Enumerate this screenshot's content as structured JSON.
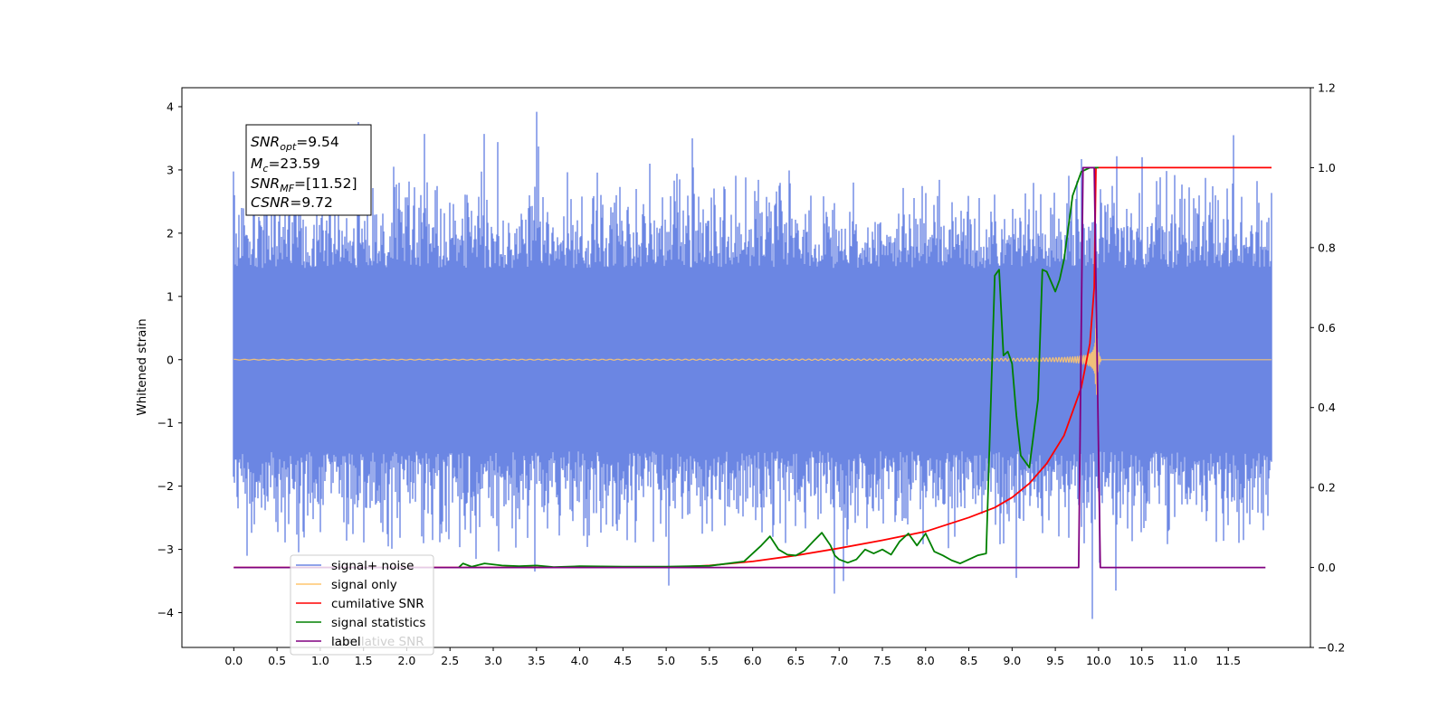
{
  "chart_data": {
    "type": "line",
    "ylabel_left": "Whitened strain",
    "xlim": [
      -0.6,
      12.45
    ],
    "ylim_left": [
      -4.55,
      4.3
    ],
    "ylim_right": [
      -0.2,
      1.2
    ],
    "xticks": [
      "0.0",
      "0.5",
      "1.0",
      "1.5",
      "2.0",
      "2.5",
      "3.0",
      "3.5",
      "4.0",
      "4.5",
      "5.0",
      "5.5",
      "6.0",
      "6.5",
      "7.0",
      "7.5",
      "8.0",
      "8.5",
      "9.0",
      "9.5",
      "10.0",
      "10.5",
      "11.0",
      "11.5"
    ],
    "yticks_left": [
      "−4",
      "−3",
      "−2",
      "−1",
      "0",
      "1",
      "2",
      "3",
      "4"
    ],
    "yticks_right": [
      "−0.2",
      "0.0",
      "0.2",
      "0.4",
      "0.6",
      "0.8",
      "1.0",
      "1.2"
    ],
    "annotation": {
      "lines": [
        {
          "var": "SNR",
          "sub": "opt",
          "value": "=9.54"
        },
        {
          "var": "M",
          "sub": "c",
          "value": "=23.59"
        },
        {
          "var": "SNR",
          "sub": "MF",
          "value": "=[11.52]"
        },
        {
          "var": "CSNR",
          "sub": "",
          "value": "=9.72"
        }
      ]
    },
    "legend": {
      "placement": "lower-left",
      "entries": [
        {
          "label": "signal+ noise",
          "color": "#6b86e3"
        },
        {
          "label": "signal only",
          "color": "#ffc66e"
        },
        {
          "label": "cumilative SNR",
          "color": "#ff0000"
        },
        {
          "label": "signal statistics",
          "color": "#008000"
        },
        {
          "label": "label",
          "color": "#800080"
        }
      ],
      "overlapped_text": "cumilative SNR"
    },
    "series": [
      {
        "name": "signal+ noise",
        "axis": "left",
        "color": "#6b86e3",
        "style": "dense_noise",
        "x_range": [
          0.0,
          12.0
        ],
        "spikes": [
          [
            3.5,
            3.92
          ],
          [
            2.2,
            3.57
          ],
          [
            2.9,
            3.57
          ],
          [
            1.85,
            3.05
          ],
          [
            5.3,
            3.5
          ],
          [
            10.5,
            3.2
          ],
          [
            9.8,
            3.17
          ],
          [
            6.95,
            -3.7
          ],
          [
            9.05,
            -3.45
          ],
          [
            9.93,
            -4.1
          ],
          [
            3.48,
            -3.35
          ],
          [
            7.05,
            -3.5
          ],
          [
            10.2,
            -3.65
          ],
          [
            2.8,
            -3.15
          ],
          [
            0.15,
            -3.1
          ]
        ]
      },
      {
        "name": "signal only",
        "axis": "left",
        "color": "#ffc66e",
        "style": "chirp",
        "x_range": [
          0.0,
          12.0
        ],
        "merger_time": 9.97,
        "peak_amplitude": 0.95
      },
      {
        "name": "cumilative SNR",
        "axis": "right",
        "x": [
          0.0,
          1.0,
          2.0,
          3.0,
          4.0,
          5.0,
          5.5,
          6.0,
          6.5,
          7.0,
          7.5,
          8.0,
          8.5,
          8.8,
          9.0,
          9.2,
          9.4,
          9.6,
          9.8,
          9.9,
          9.95,
          9.97,
          12.0
        ],
        "values": [
          0.0,
          0.0,
          0.0,
          0.0,
          0.0,
          0.0,
          0.005,
          0.015,
          0.03,
          0.048,
          0.068,
          0.09,
          0.125,
          0.15,
          0.175,
          0.21,
          0.26,
          0.33,
          0.45,
          0.56,
          0.7,
          1.0,
          1.0
        ],
        "color": "#ff0000"
      },
      {
        "name": "signal statistics",
        "axis": "right",
        "x": [
          2.6,
          2.65,
          2.75,
          2.9,
          3.1,
          3.3,
          3.5,
          3.7,
          4.0,
          4.5,
          5.0,
          5.5,
          5.9,
          6.0,
          6.1,
          6.2,
          6.3,
          6.4,
          6.5,
          6.6,
          6.7,
          6.8,
          6.9,
          6.95,
          7.0,
          7.1,
          7.2,
          7.3,
          7.4,
          7.5,
          7.6,
          7.7,
          7.8,
          7.9,
          8.0,
          8.1,
          8.2,
          8.3,
          8.4,
          8.5,
          8.6,
          8.7,
          8.8,
          8.85,
          8.9,
          8.95,
          9.0,
          9.05,
          9.1,
          9.2,
          9.3,
          9.35,
          9.4,
          9.5,
          9.55,
          9.6,
          9.7,
          9.8,
          9.9,
          10.0
        ],
        "values": [
          0.0,
          0.01,
          0.002,
          0.01,
          0.005,
          0.003,
          0.005,
          0.001,
          0.003,
          0.002,
          0.002,
          0.004,
          0.015,
          0.035,
          0.055,
          0.078,
          0.045,
          0.032,
          0.03,
          0.042,
          0.065,
          0.087,
          0.055,
          0.03,
          0.02,
          0.012,
          0.02,
          0.045,
          0.035,
          0.045,
          0.032,
          0.065,
          0.085,
          0.055,
          0.085,
          0.04,
          0.03,
          0.018,
          0.01,
          0.02,
          0.03,
          0.035,
          0.73,
          0.745,
          0.53,
          0.54,
          0.51,
          0.38,
          0.28,
          0.25,
          0.42,
          0.745,
          0.74,
          0.69,
          0.72,
          0.77,
          0.93,
          0.99,
          1.0,
          1.0
        ],
        "color": "#008000"
      },
      {
        "name": "label",
        "axis": "right",
        "x": [
          0.0,
          9.77,
          9.82,
          9.95,
          10.02,
          11.93
        ],
        "values": [
          0.0,
          0.0,
          1.0,
          1.0,
          0.0,
          0.0
        ],
        "color": "#800080"
      }
    ]
  }
}
